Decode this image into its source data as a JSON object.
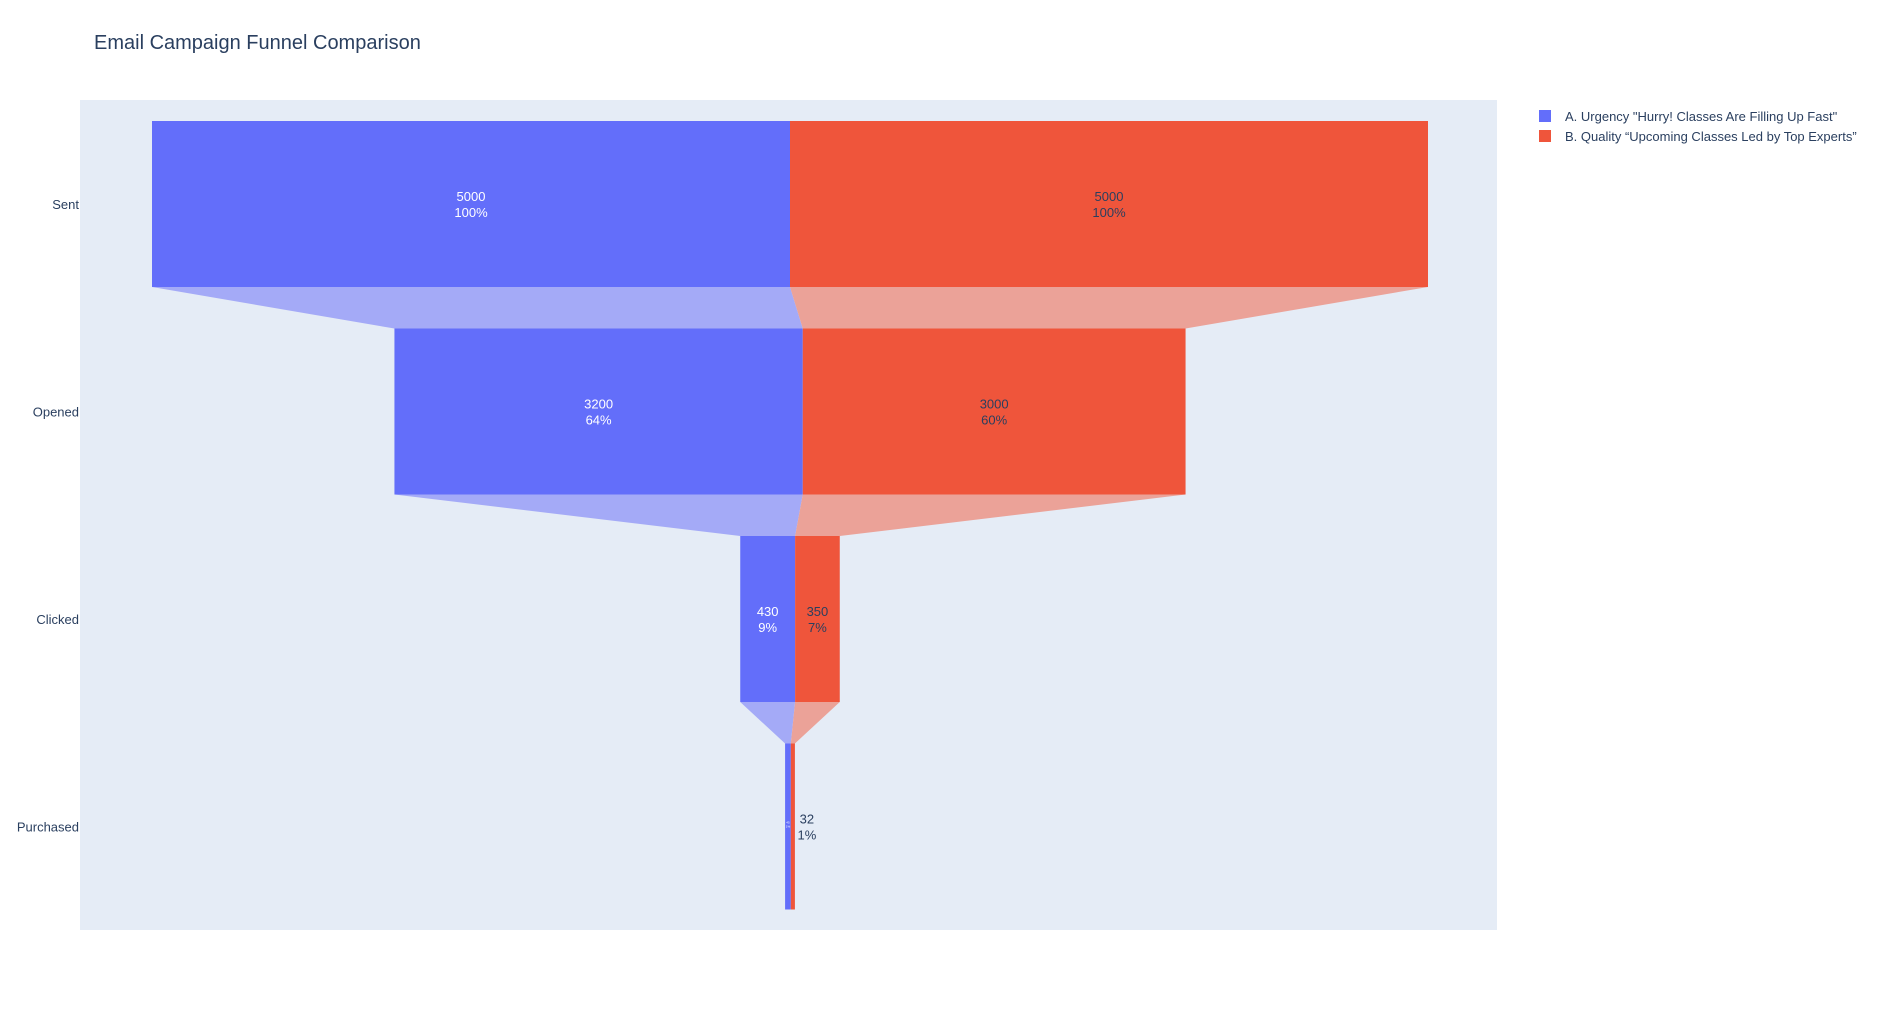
{
  "chart_data": {
    "type": "funnel",
    "title": "Email Campaign Funnel Comparison",
    "categories": [
      "Sent",
      "Opened",
      "Clicked",
      "Purchased"
    ],
    "series": [
      {
        "name": "A. Urgency \"Hurry! Classes Are Filling Up Fast\"",
        "values": [
          5000,
          3200,
          430,
          45
        ],
        "percent_labels": [
          "100%",
          "64%",
          "9%",
          "1%"
        ],
        "color": "#636efa",
        "connector_color": "#a4aaf7",
        "label_color": "#ffffff"
      },
      {
        "name": "B. Quality “Upcoming Classes Led by Top Experts”",
        "values": [
          5000,
          3000,
          350,
          32
        ],
        "percent_labels": [
          "100%",
          "60%",
          "7%",
          "1%"
        ],
        "color": "#ef553b",
        "connector_color": "#eba298",
        "label_color": "#2a3f5f"
      }
    ],
    "plot_background": "#e5ecf6",
    "legend_position": "top-right",
    "grid": false
  }
}
